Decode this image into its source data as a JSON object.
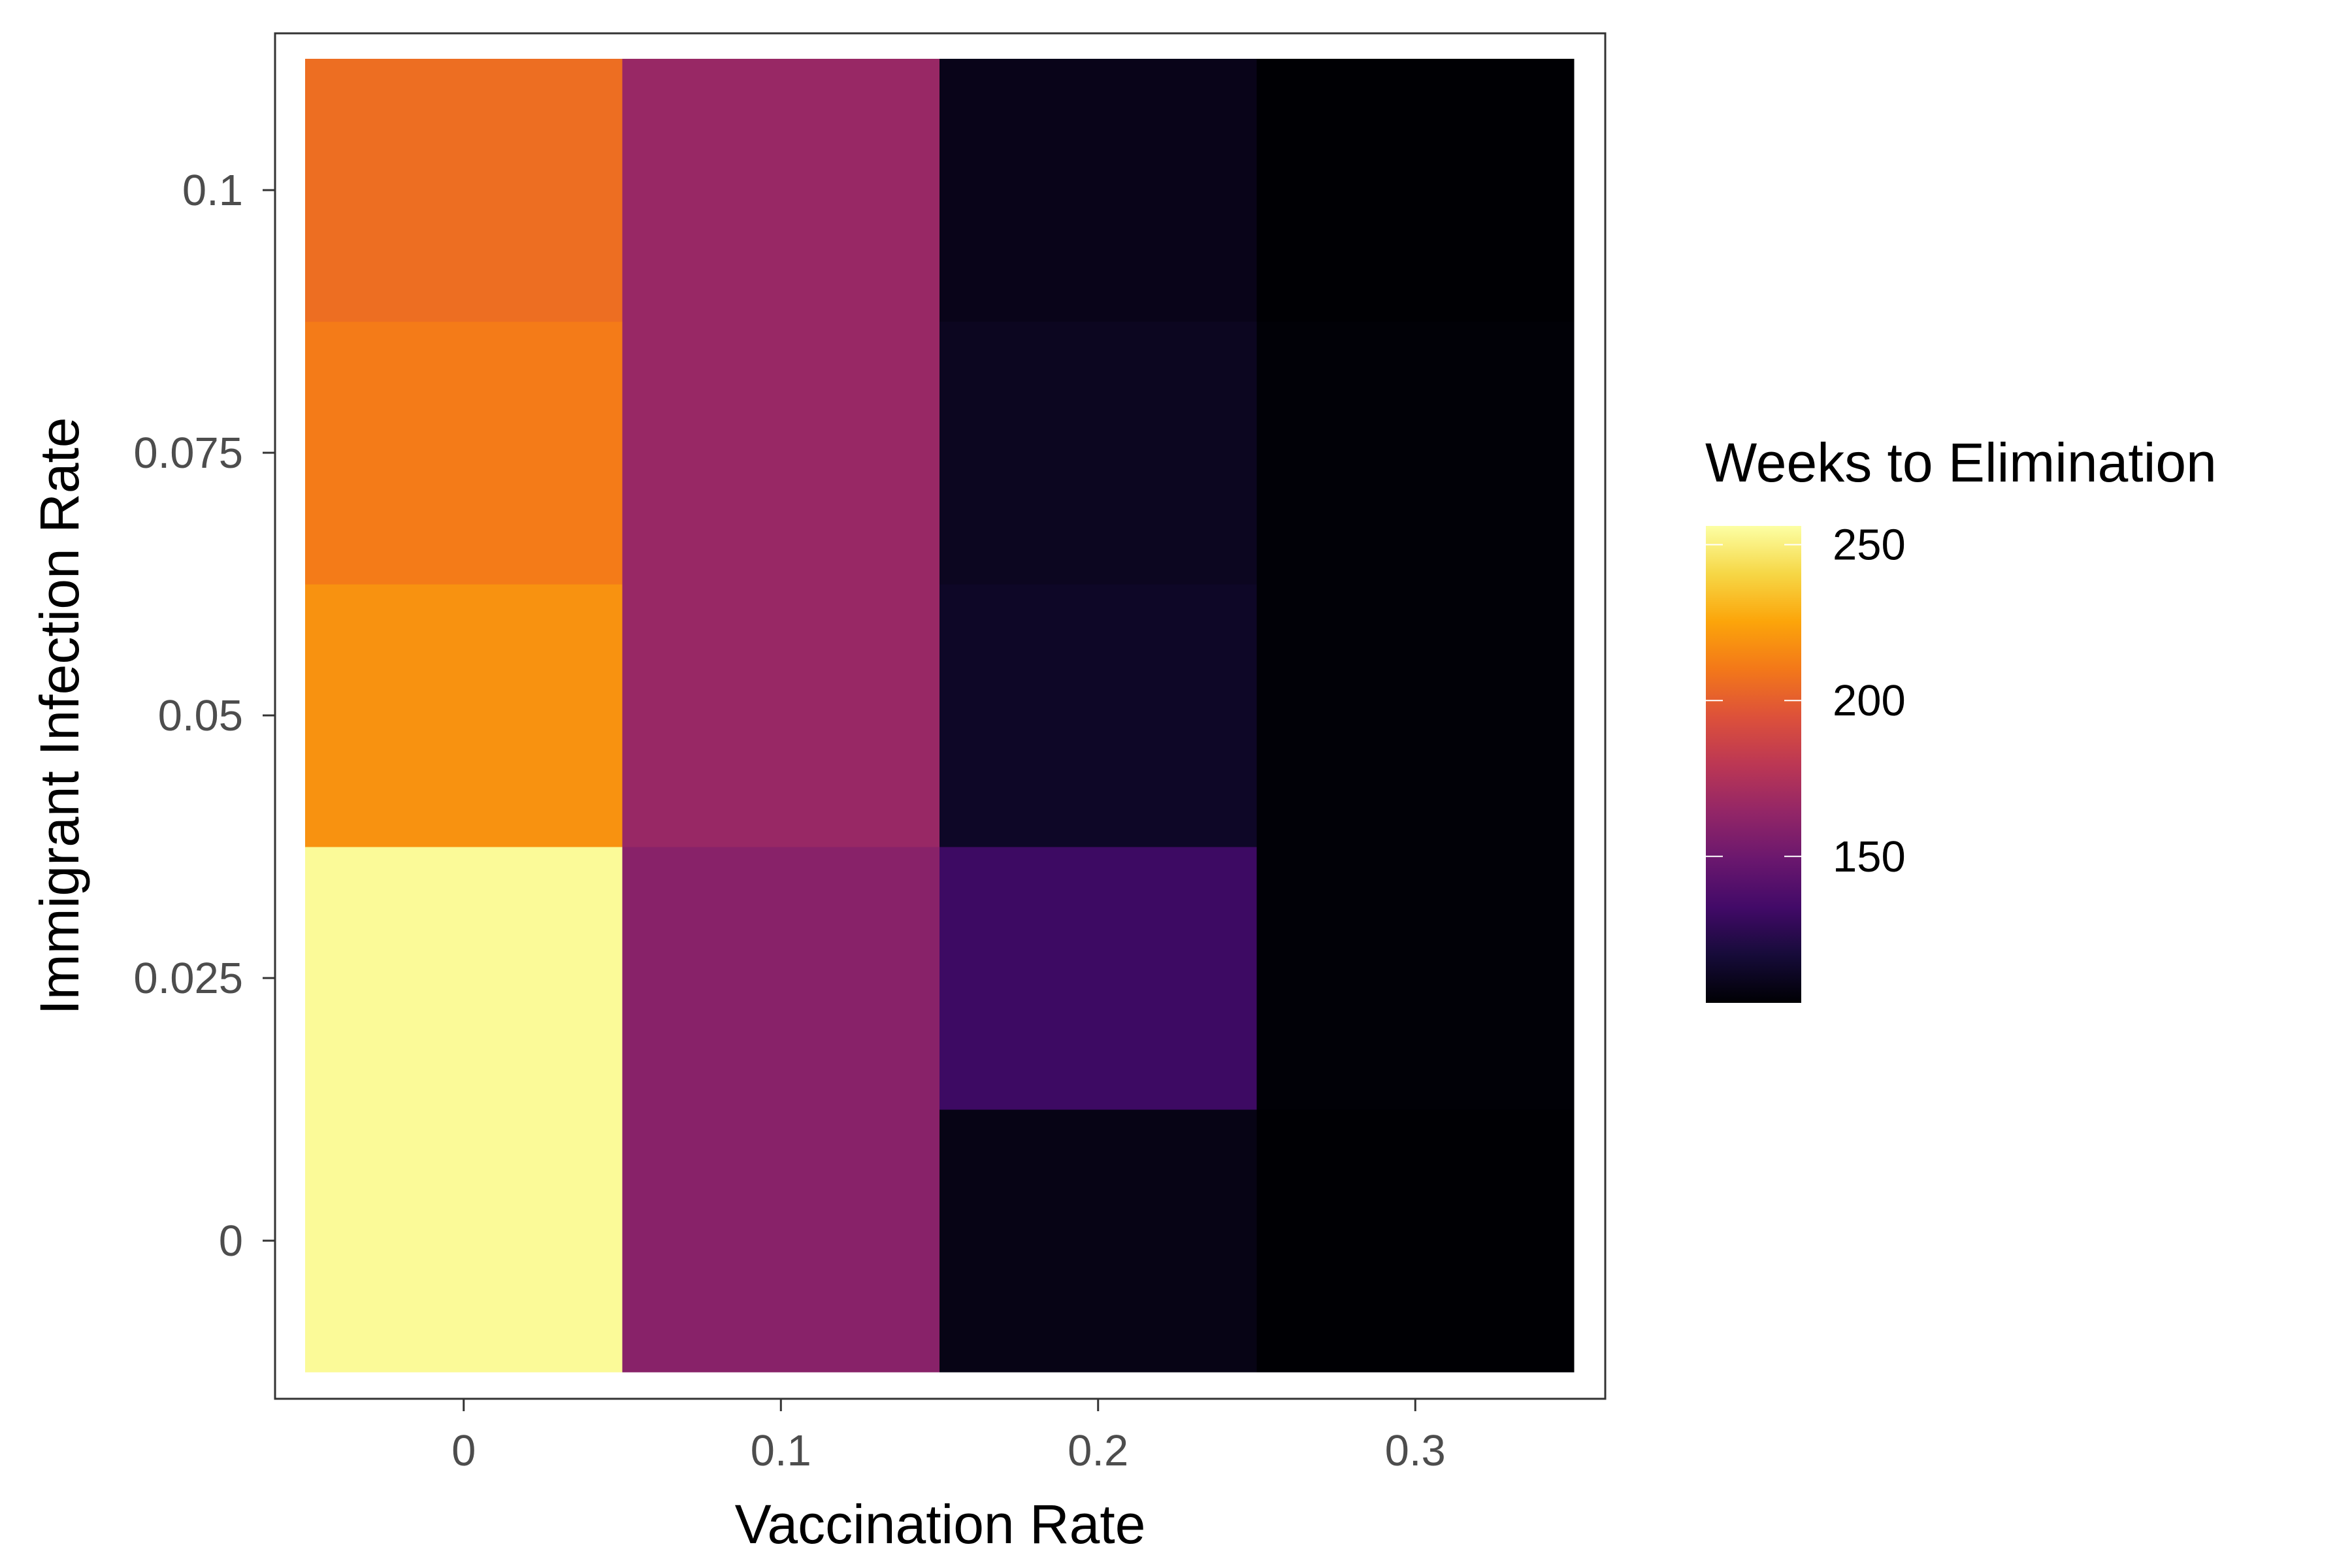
{
  "chart_data": {
    "type": "heatmap",
    "title": "",
    "xlabel": "Vaccination Rate",
    "ylabel": "Immigrant Infection Rate",
    "x": [
      0,
      0.1,
      0.2,
      0.3
    ],
    "x_tick_labels": [
      "0",
      "0.1",
      "0.2",
      "0.3"
    ],
    "y": [
      0,
      0.025,
      0.05,
      0.075,
      0.1
    ],
    "y_tick_labels": [
      "0",
      "0.025",
      "0.05",
      "0.075",
      "0.1"
    ],
    "values": [
      [
        254,
        160,
        108,
        103
      ],
      [
        254,
        160,
        132,
        104
      ],
      [
        219,
        166,
        113,
        104
      ],
      [
        211,
        166,
        111,
        104
      ],
      [
        206,
        166,
        109,
        103
      ]
    ],
    "colorscale": "inferno",
    "color_range": [
      103,
      256
    ],
    "legend": {
      "title": "Weeks to Elimination",
      "ticks": [
        150,
        200,
        250
      ],
      "tick_labels": [
        "150",
        "200",
        "250"
      ],
      "placement": "right"
    },
    "grid": false,
    "colors": {
      "panel_border": "#333333",
      "tick_text": "#4d4d4d"
    }
  }
}
